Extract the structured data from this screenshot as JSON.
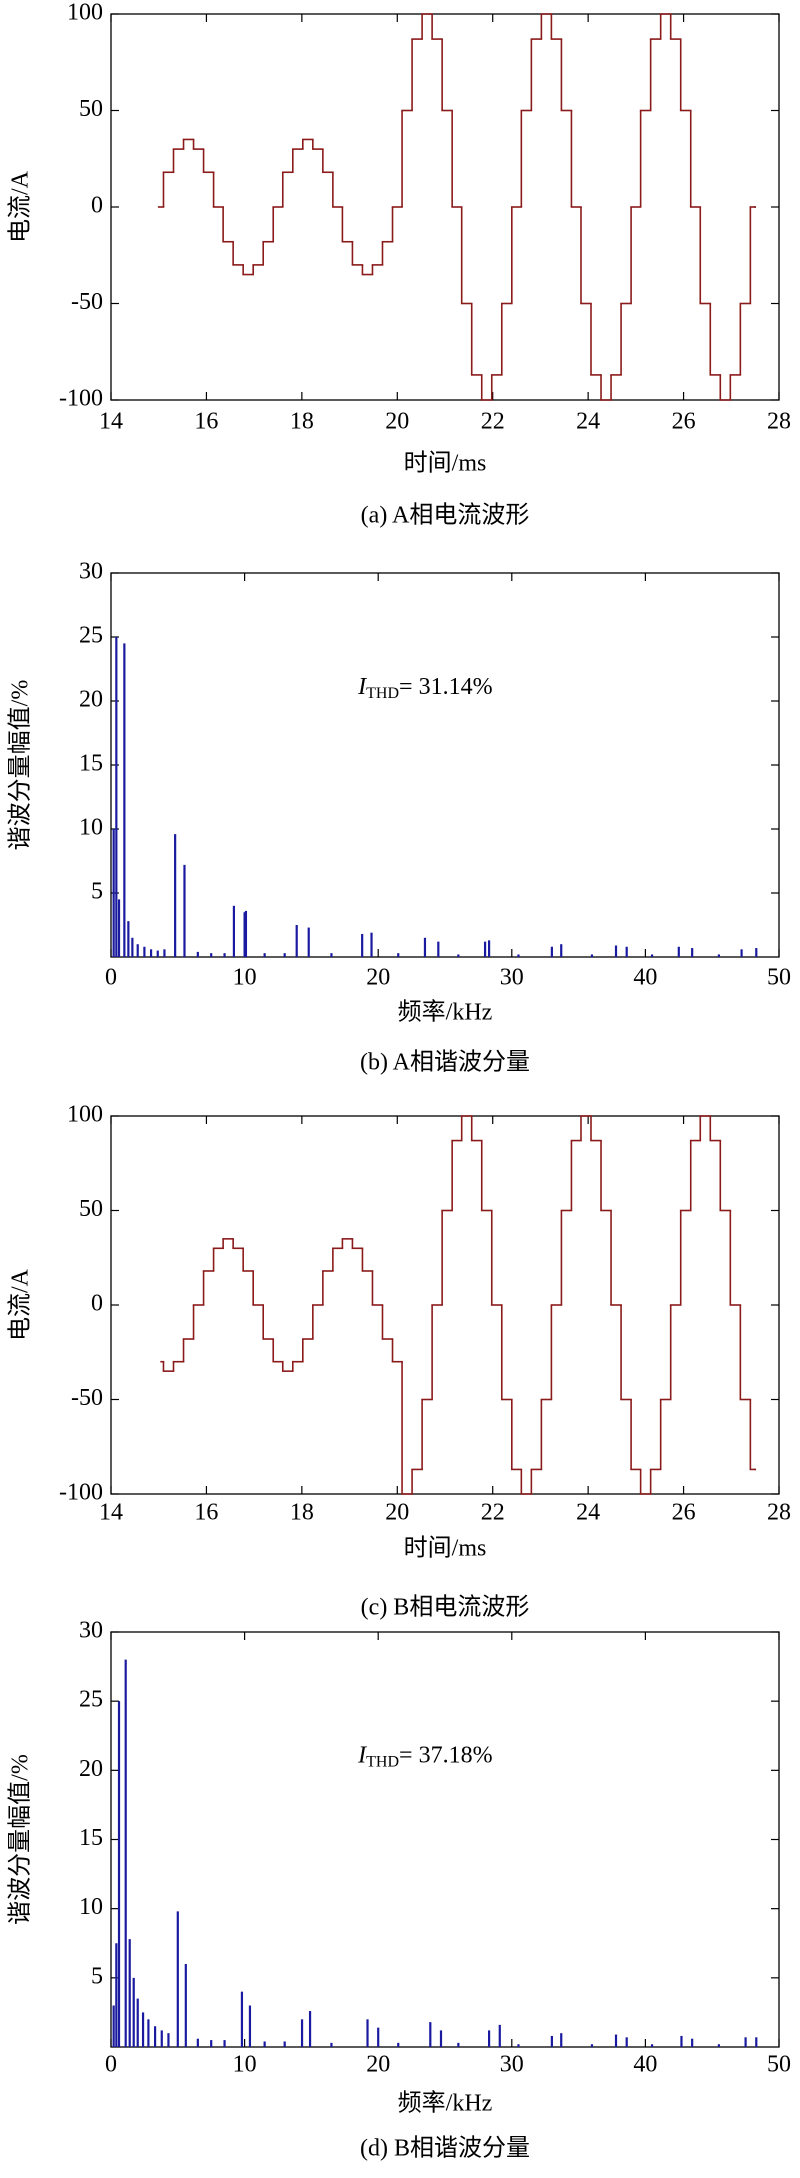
{
  "chart_data": [
    {
      "type": "line",
      "drawstyle": "steps-post",
      "caption": "(a) A相电流波形",
      "xlabel": "时间/ms",
      "ylabel": "电流/A",
      "color": "#8b1a1a",
      "xlim": [
        14,
        28
      ],
      "xticks": [
        14,
        16,
        18,
        20,
        22,
        24,
        26,
        28
      ],
      "ylim": [
        -100,
        100
      ],
      "yticks": [
        -100,
        -50,
        0,
        50,
        100
      ],
      "x": [
        15,
        15.1,
        15.31,
        15.52,
        15.73,
        15.94,
        16.15,
        16.35,
        16.56,
        16.77,
        16.98,
        17.19,
        17.4,
        17.6,
        17.81,
        18.02,
        18.23,
        18.44,
        18.65,
        18.85,
        19.06,
        19.27,
        19.48,
        19.69,
        19.9,
        20.1,
        20.31,
        20.52,
        20.73,
        20.94,
        21.15,
        21.35,
        21.56,
        21.77,
        21.98,
        22.19,
        22.4,
        22.6,
        22.81,
        23.02,
        23.23,
        23.44,
        23.65,
        23.85,
        24.06,
        24.27,
        24.48,
        24.69,
        24.9,
        25.1,
        25.31,
        25.52,
        25.73,
        25.94,
        26.15,
        26.35,
        26.56,
        26.77,
        26.98,
        27.19,
        27.4,
        27.5
      ],
      "values": [
        0,
        18,
        30,
        35,
        30,
        18,
        0,
        -18,
        -30,
        -35,
        -30,
        -18,
        0,
        18,
        30,
        35,
        30,
        18,
        0,
        -18,
        -30,
        -35,
        -30,
        -18,
        0,
        50,
        87,
        100,
        87,
        50,
        0,
        -50,
        -87,
        -100,
        -87,
        -50,
        0,
        50,
        87,
        100,
        87,
        50,
        0,
        -50,
        -87,
        -100,
        -87,
        -50,
        0,
        50,
        87,
        100,
        87,
        50,
        0,
        -50,
        -87,
        -100,
        -87,
        -50,
        0,
        0
      ]
    },
    {
      "type": "spectrum",
      "caption": "(b) A相谐波分量",
      "xlabel": "频率/kHz",
      "ylabel": "谐波分量幅值/%",
      "color": "#1a1aa0",
      "annotation": {
        "symbol": "I",
        "subscript": "THD",
        "text": "= 31.14%"
      },
      "xlim": [
        0,
        50
      ],
      "xticks": [
        0,
        10,
        20,
        30,
        40,
        50
      ],
      "ylim": [
        0,
        30
      ],
      "yticks": [
        5,
        10,
        15,
        20,
        25,
        30
      ],
      "x": [
        0.2,
        0.4,
        0.6,
        1.0,
        1.3,
        1.6,
        2.0,
        2.5,
        3.0,
        3.5,
        4.0,
        4.8,
        5.5,
        6.5,
        7.5,
        8.5,
        9.2,
        10.0,
        10.1,
        11.5,
        13.0,
        13.9,
        14.8,
        16.5,
        18.8,
        19.5,
        21.5,
        23.5,
        24.5,
        26.0,
        28.0,
        28.3,
        30.5,
        33.0,
        33.7,
        36.0,
        37.8,
        38.6,
        40.5,
        42.5,
        43.5,
        45.5,
        47.2,
        48.3
      ],
      "values": [
        10,
        25,
        4.5,
        24.5,
        2.8,
        1.5,
        1.0,
        0.8,
        0.6,
        0.5,
        0.6,
        9.6,
        7.2,
        0.4,
        0.3,
        0.3,
        4,
        3.5,
        3.6,
        0.3,
        0.3,
        2.5,
        2.3,
        0.3,
        1.8,
        1.9,
        0.3,
        1.5,
        1.2,
        0.2,
        1.2,
        1.3,
        0.2,
        0.8,
        1,
        0.2,
        0.9,
        0.8,
        0.2,
        0.8,
        0.7,
        0.2,
        0.6,
        0.7
      ]
    },
    {
      "type": "line",
      "drawstyle": "steps-post",
      "caption": "(c) B相电流波形",
      "xlabel": "时间/ms",
      "ylabel": "电流/A",
      "color": "#8b1a1a",
      "xlim": [
        14,
        28
      ],
      "xticks": [
        14,
        16,
        18,
        20,
        22,
        24,
        26,
        28
      ],
      "ylim": [
        -100,
        100
      ],
      "yticks": [
        -100,
        -50,
        0,
        50,
        100
      ],
      "x": [
        15.05,
        15.1,
        15.31,
        15.52,
        15.73,
        15.94,
        16.15,
        16.35,
        16.56,
        16.77,
        16.98,
        17.19,
        17.4,
        17.6,
        17.81,
        18.02,
        18.23,
        18.44,
        18.65,
        18.85,
        19.06,
        19.27,
        19.48,
        19.69,
        19.9,
        20.1,
        20.31,
        20.52,
        20.73,
        20.94,
        21.15,
        21.35,
        21.56,
        21.77,
        21.98,
        22.19,
        22.4,
        22.6,
        22.81,
        23.02,
        23.23,
        23.44,
        23.65,
        23.85,
        24.06,
        24.27,
        24.48,
        24.69,
        24.9,
        25.1,
        25.31,
        25.52,
        25.73,
        25.94,
        26.15,
        26.35,
        26.56,
        26.77,
        26.98,
        27.19,
        27.4,
        27.5
      ],
      "values": [
        -30,
        -35,
        -30,
        -18,
        0,
        18,
        30,
        35,
        30,
        18,
        0,
        -18,
        -30,
        -35,
        -30,
        -18,
        0,
        18,
        30,
        35,
        30,
        18,
        0,
        -18,
        -30,
        -100,
        -87,
        -50,
        0,
        50,
        87,
        100,
        87,
        50,
        0,
        -50,
        -87,
        -100,
        -87,
        -50,
        0,
        50,
        87,
        100,
        87,
        50,
        0,
        -50,
        -87,
        -100,
        -87,
        -50,
        0,
        50,
        87,
        100,
        87,
        50,
        0,
        -50,
        -87,
        -87
      ]
    },
    {
      "type": "spectrum",
      "caption": "(d) B相谐波分量",
      "xlabel": "频率/kHz",
      "ylabel": "谐波分量幅值/%",
      "color": "#1a1aa0",
      "annotation": {
        "symbol": "I",
        "subscript": "THD",
        "text": "= 37.18%"
      },
      "xlim": [
        0,
        50
      ],
      "xticks": [
        0,
        10,
        20,
        30,
        40,
        50
      ],
      "ylim": [
        0,
        30
      ],
      "yticks": [
        5,
        10,
        15,
        20,
        25,
        30
      ],
      "x": [
        0.2,
        0.4,
        0.6,
        1.1,
        1.4,
        1.7,
        2.0,
        2.4,
        2.8,
        3.3,
        3.8,
        4.3,
        5.0,
        5.6,
        6.5,
        7.5,
        8.5,
        9.8,
        10.4,
        11.5,
        13.0,
        14.3,
        14.9,
        16.5,
        19.2,
        20.0,
        21.5,
        23.9,
        24.7,
        26.0,
        28.3,
        29.1,
        30.5,
        33.0,
        33.7,
        36.0,
        37.8,
        38.6,
        40.5,
        42.7,
        43.5,
        45.5,
        47.5,
        48.3
      ],
      "values": [
        3,
        7.5,
        25,
        28,
        7.8,
        5,
        3.5,
        2.5,
        2,
        1.5,
        1.2,
        1,
        9.8,
        6,
        0.6,
        0.5,
        0.5,
        4,
        3,
        0.4,
        0.4,
        2,
        2.6,
        0.3,
        2,
        1.4,
        0.3,
        1.8,
        1.2,
        0.3,
        1.2,
        1.6,
        0.2,
        0.8,
        1,
        0.2,
        0.9,
        0.7,
        0.2,
        0.8,
        0.6,
        0.2,
        0.7,
        0.7
      ]
    }
  ]
}
